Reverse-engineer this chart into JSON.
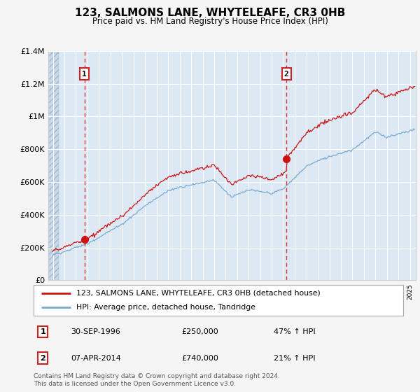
{
  "title": "123, SALMONS LANE, WHYTELEAFE, CR3 0HB",
  "subtitle": "Price paid vs. HM Land Registry's House Price Index (HPI)",
  "legend_line1": "123, SALMONS LANE, WHYTELEAFE, CR3 0HB (detached house)",
  "legend_line2": "HPI: Average price, detached house, Tandridge",
  "annotation1_label": "1",
  "annotation1_date": "30-SEP-1996",
  "annotation1_price": "£250,000",
  "annotation1_hpi": "47% ↑ HPI",
  "annotation1_year": 1996.75,
  "annotation1_value": 250000,
  "annotation2_label": "2",
  "annotation2_date": "07-APR-2014",
  "annotation2_price": "£740,000",
  "annotation2_hpi": "21% ↑ HPI",
  "annotation2_year": 2014.27,
  "annotation2_value": 740000,
  "hpi_color": "#7aaad0",
  "price_color": "#cc1111",
  "vline_color": "#dd3333",
  "background_color": "#f5f5f5",
  "plot_bg_color": "#dce9f5",
  "hatch_bg_color": "#c8d8e8",
  "ylim": [
    0,
    1400000
  ],
  "yticks": [
    0,
    200000,
    400000,
    600000,
    800000,
    1000000,
    1200000,
    1400000
  ],
  "ytick_labels": [
    "£0",
    "£200K",
    "£400K",
    "£600K",
    "£800K",
    "£1M",
    "£1.2M",
    "£1.4M"
  ],
  "footnote": "Contains HM Land Registry data © Crown copyright and database right 2024.\nThis data is licensed under the Open Government Licence v3.0.",
  "xlim_start": 1993.6,
  "xlim_end": 2025.5,
  "hatch_end": 1994.5
}
